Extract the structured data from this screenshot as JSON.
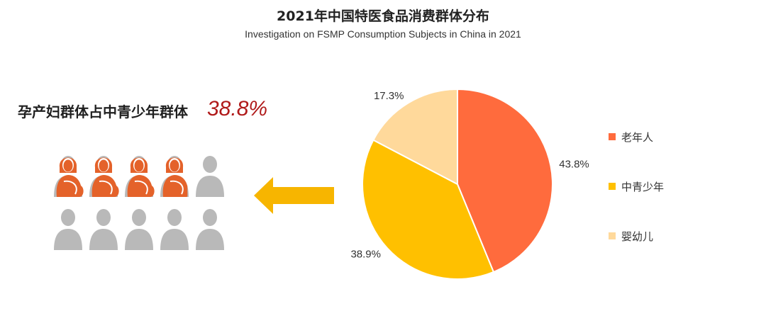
{
  "title": "2021年中国特医食品消费群体分布",
  "subtitle": "Investigation on FSMP Consumption Subjects in China in 2021",
  "highlight": {
    "label": "孕产妇群体占中青少年群体",
    "value": "38.8%",
    "value_color": "#b01a1a",
    "pregnant_share": 0.388,
    "icon_count": 10
  },
  "colors": {
    "pregnant_icon": "#e4622a",
    "neutral_icon": "#b9b9b9",
    "arrow": "#f7b500"
  },
  "chart_data": {
    "type": "pie",
    "categories": [
      "老年人",
      "中青少年",
      "婴幼儿"
    ],
    "values": [
      43.8,
      38.9,
      17.3
    ],
    "labels": [
      "43.8%",
      "38.9%",
      "17.3%"
    ],
    "colors": [
      "#ff6b3d",
      "#ffc000",
      "#ffd99b"
    ],
    "legend_position": "right"
  }
}
